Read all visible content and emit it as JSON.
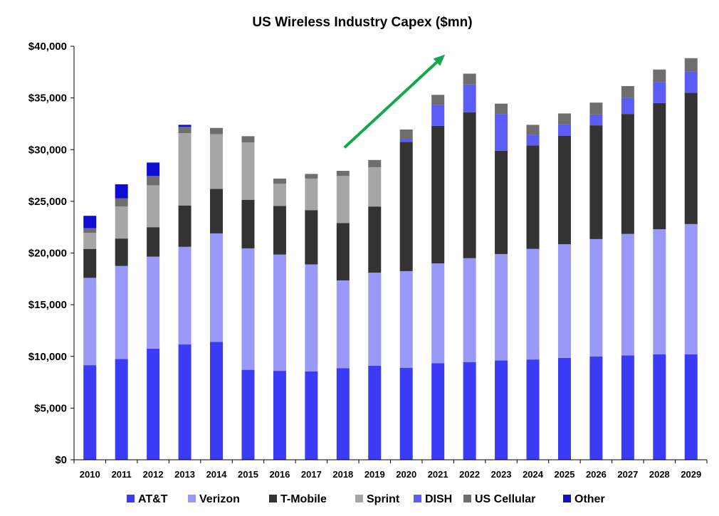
{
  "chart_data": {
    "type": "bar",
    "stacked": true,
    "title": "US Wireless Industry Capex ($mn)",
    "xlabel": "",
    "ylabel": "",
    "ylim": [
      0,
      40000
    ],
    "y_ticks": [
      "$0",
      "$5,000",
      "$10,000",
      "$15,000",
      "$20,000",
      "$25,000",
      "$30,000",
      "$35,000",
      "$40,000"
    ],
    "y_tick_values": [
      0,
      5000,
      10000,
      15000,
      20000,
      25000,
      30000,
      35000,
      40000
    ],
    "grid": false,
    "legend_position": "bottom",
    "categories": [
      "2010",
      "2011",
      "2012",
      "2013",
      "2014",
      "2015",
      "2016",
      "2017",
      "2018",
      "2019",
      "2020",
      "2021",
      "2022",
      "2023",
      "2024",
      "2025",
      "2026",
      "2027",
      "2028",
      "2029"
    ],
    "series": [
      {
        "name": "AT&T",
        "color": "#3b3bf5",
        "values": [
          9150,
          9750,
          10750,
          11150,
          11400,
          8700,
          8600,
          8550,
          8850,
          9100,
          8900,
          9350,
          9450,
          9600,
          9700,
          9850,
          10000,
          10100,
          10200,
          10200
        ]
      },
      {
        "name": "Verizon",
        "color": "#9999fa",
        "values": [
          8450,
          9000,
          8900,
          9450,
          10500,
          11750,
          11250,
          10350,
          8500,
          9000,
          9350,
          9650,
          10050,
          10300,
          10700,
          11000,
          11350,
          11750,
          12100,
          12600
        ]
      },
      {
        "name": "T-Mobile",
        "color": "#333333",
        "values": [
          2800,
          2650,
          2850,
          4000,
          4300,
          4700,
          4700,
          5250,
          5550,
          6400,
          12500,
          13300,
          14100,
          10000,
          10000,
          10500,
          11000,
          11600,
          12200,
          12700
        ]
      },
      {
        "name": "Sprint",
        "color": "#a6a6a6",
        "values": [
          1550,
          3100,
          4050,
          7000,
          5300,
          5550,
          2150,
          3050,
          4550,
          3800,
          0,
          0,
          0,
          0,
          0,
          0,
          0,
          0,
          0,
          0
        ]
      },
      {
        "name": "DISH",
        "color": "#5c5cf7",
        "values": [
          0,
          0,
          0,
          0,
          0,
          0,
          0,
          0,
          0,
          0,
          300,
          2050,
          2700,
          3550,
          1000,
          1100,
          1050,
          1550,
          2000,
          2050
        ]
      },
      {
        "name": "US Cellular",
        "color": "#6e6e6e",
        "values": [
          450,
          800,
          900,
          600,
          600,
          600,
          500,
          450,
          500,
          700,
          900,
          950,
          1050,
          1000,
          1000,
          1050,
          1150,
          1150,
          1250,
          1300
        ]
      },
      {
        "name": "Other",
        "color": "#0d0dd4",
        "values": [
          1200,
          1350,
          1300,
          200,
          0,
          0,
          0,
          0,
          0,
          0,
          0,
          0,
          0,
          0,
          0,
          0,
          0,
          0,
          0,
          0
        ]
      }
    ],
    "annotations": [
      {
        "type": "arrow",
        "color": "#12a84e",
        "direction": "up-right",
        "from": {
          "x": "2018",
          "y": 30200
        },
        "to": {
          "x": "2021",
          "y": 39200
        }
      }
    ]
  }
}
